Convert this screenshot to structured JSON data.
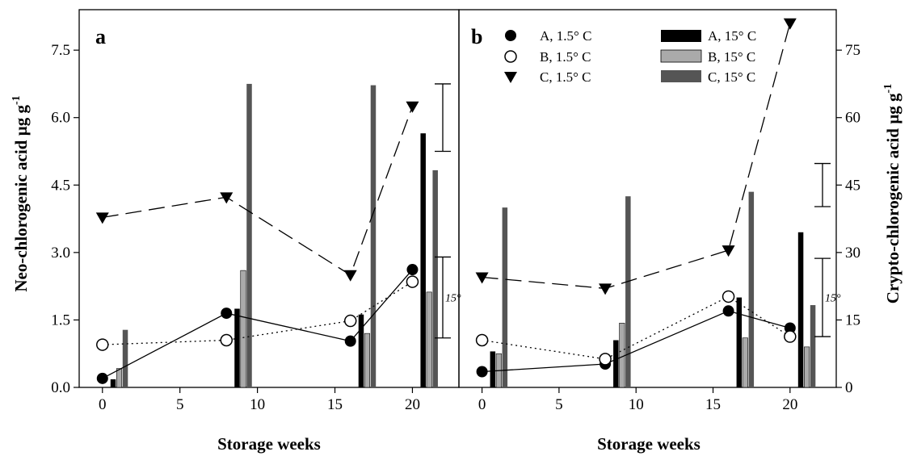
{
  "figure": {
    "xlabel": "Storage weeks",
    "ylabel_left": "Neo-chlorogenic acid µg g",
    "ylabel_right": "Crypto-chlorogenic acid µg g",
    "ylabel_superscript": "-1"
  },
  "legend": {
    "entries": [
      {
        "label": "A, 1.5° C",
        "marker": "filled-circle",
        "color": "#000000"
      },
      {
        "label": "B, 1.5° C",
        "marker": "open-circle",
        "color": "#000000"
      },
      {
        "label": "C, 1.5° C",
        "marker": "filled-triangle-down",
        "color": "#000000"
      },
      {
        "label": "A, 15° C",
        "marker": "bar",
        "color": "#000000"
      },
      {
        "label": "B, 15° C",
        "marker": "bar",
        "color": "#aaaaaa"
      },
      {
        "label": "C, 15° C",
        "marker": "bar",
        "color": "#555555"
      }
    ]
  },
  "chart_data": [
    {
      "type": "line",
      "panel_label": "a",
      "xlabel": "Storage weeks",
      "ylabel": "Neo-chlorogenic acid µg g-1",
      "xlim": [
        -1.5,
        23
      ],
      "ylim": [
        0,
        8.4
      ],
      "xticks": [
        0,
        5,
        10,
        15,
        20
      ],
      "yticks": [
        0.0,
        1.5,
        3.0,
        4.5,
        6.0,
        7.5
      ],
      "ytick_labels": [
        "0.0",
        "1.5",
        "3.0",
        "4.5",
        "6.0",
        "7.5"
      ],
      "x": [
        0,
        8,
        16,
        20
      ],
      "line_series": [
        {
          "name": "A, 1.5° C",
          "values": [
            0.2,
            1.65,
            1.03,
            2.62
          ]
        },
        {
          "name": "B, 1.5° C",
          "values": [
            0.95,
            1.05,
            1.48,
            2.35
          ]
        },
        {
          "name": "C, 1.5° C",
          "values": [
            3.78,
            4.23,
            2.5,
            6.25
          ]
        }
      ],
      "bar_series": [
        {
          "name": "A, 15° C",
          "values": [
            0.18,
            1.75,
            1.62,
            5.65
          ]
        },
        {
          "name": "B, 15° C",
          "values": [
            0.42,
            2.6,
            1.2,
            2.12
          ]
        },
        {
          "name": "C, 15° C",
          "values": [
            1.28,
            6.75,
            6.72,
            4.83
          ]
        }
      ],
      "error_bars": [
        {
          "label": "",
          "center": 6.0,
          "half_range": 0.75
        },
        {
          "label": "15°",
          "center": 2.0,
          "half_range": 0.9
        }
      ]
    },
    {
      "type": "line",
      "panel_label": "b",
      "xlabel": "Storage weeks",
      "ylabel": "Crypto-chlorogenic acid µg g-1",
      "xlim": [
        -1.5,
        23
      ],
      "ylim": [
        0,
        84
      ],
      "xticks": [
        0,
        5,
        10,
        15,
        20
      ],
      "yticks": [
        0,
        15,
        30,
        45,
        60,
        75
      ],
      "ytick_labels": [
        "0",
        "15",
        "30",
        "45",
        "60",
        "75"
      ],
      "x": [
        0,
        8,
        16,
        20
      ],
      "line_series": [
        {
          "name": "A, 1.5° C",
          "values": [
            3.5,
            5.2,
            17.0,
            13.2
          ]
        },
        {
          "name": "B, 1.5° C",
          "values": [
            10.5,
            6.3,
            20.2,
            11.3
          ]
        },
        {
          "name": "C, 1.5° C",
          "values": [
            24.5,
            22.0,
            30.5,
            81.0
          ]
        }
      ],
      "bar_series": [
        {
          "name": "A, 15° C",
          "values": [
            8.0,
            10.5,
            20.0,
            34.5
          ]
        },
        {
          "name": "B, 15° C",
          "values": [
            7.5,
            14.3,
            11.0,
            9.0
          ]
        },
        {
          "name": "C, 15° C",
          "values": [
            40.0,
            42.5,
            43.5,
            18.3
          ]
        }
      ],
      "error_bars": [
        {
          "label": "",
          "center": 45.0,
          "half_range": 4.8
        },
        {
          "label": "15°",
          "center": 20.0,
          "half_range": 8.7
        }
      ]
    }
  ]
}
